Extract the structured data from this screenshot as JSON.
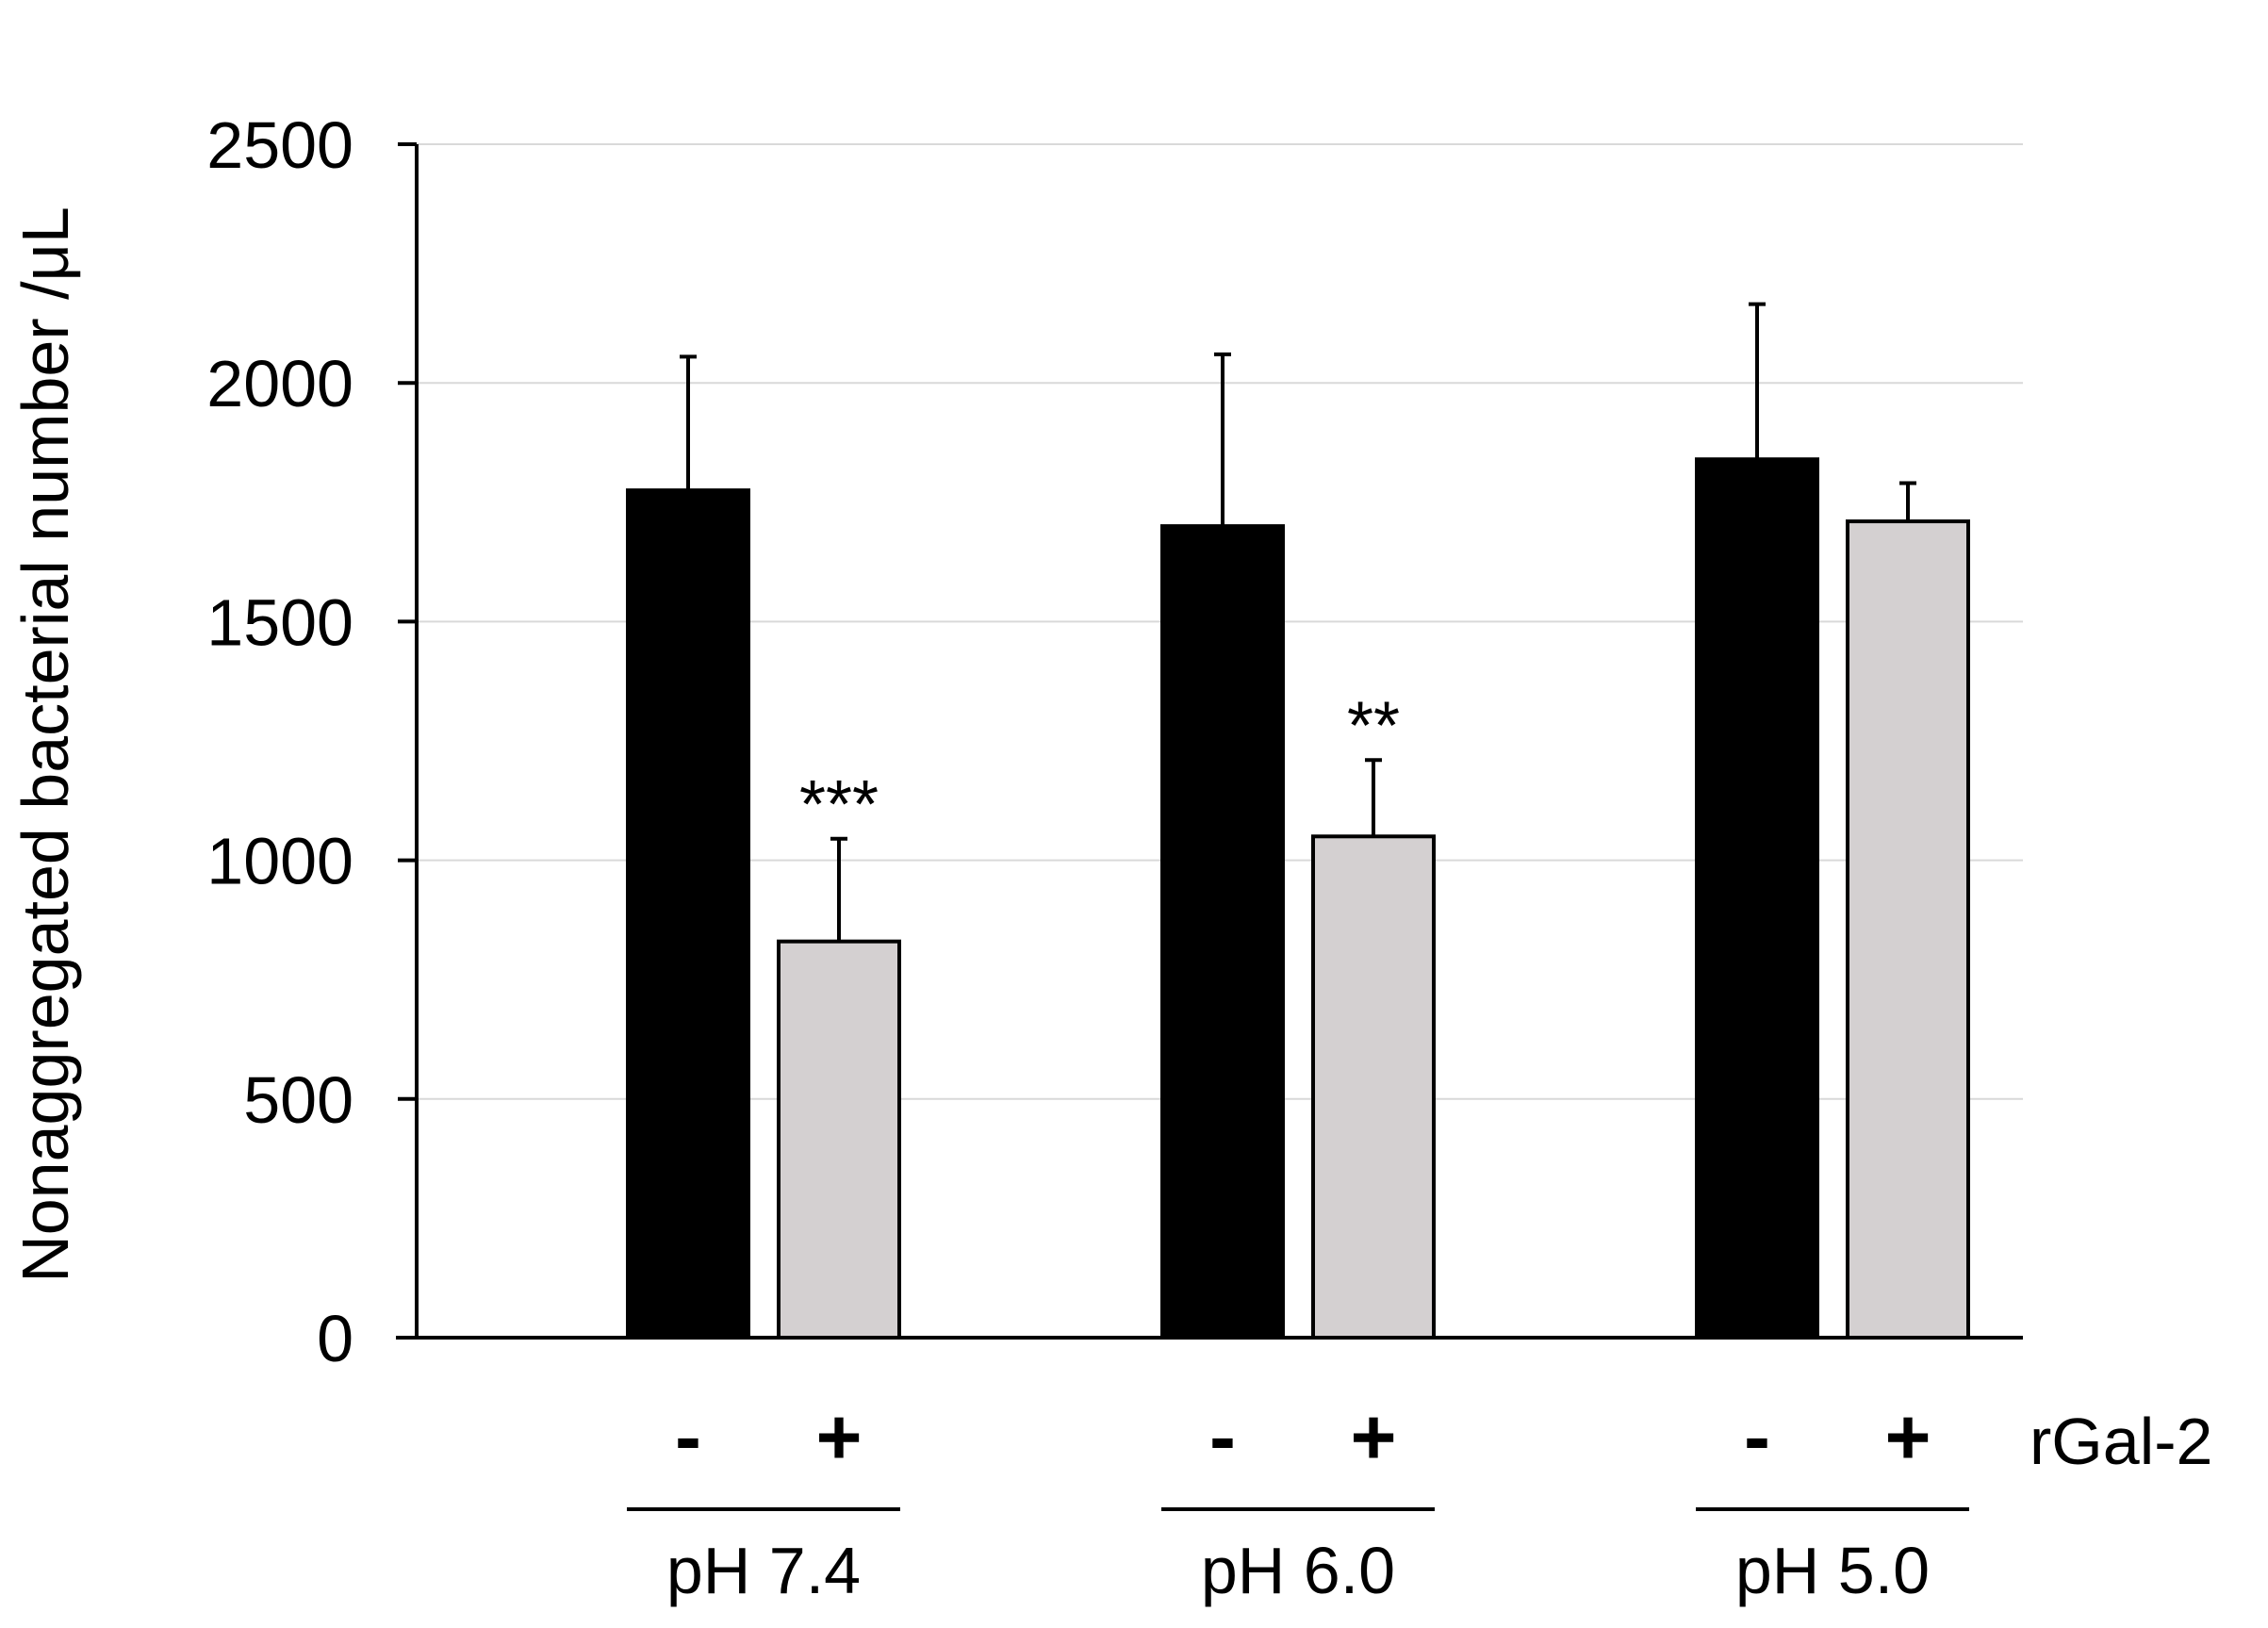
{
  "chart_data": {
    "type": "bar",
    "title": "",
    "ylabel": "Nonaggregated bacterial number /μL",
    "ylim": [
      0,
      2500
    ],
    "yticks": [
      0,
      500,
      1000,
      1500,
      2000,
      2500
    ],
    "grid": true,
    "treatment_label": "rGal-2",
    "groups": [
      {
        "label": "pH 7.4",
        "bars": [
          {
            "sign": "-",
            "value": 1775,
            "error": 280,
            "color": "#000000",
            "significance": ""
          },
          {
            "sign": "+",
            "value": 830,
            "error": 215,
            "color": "#d4d0d1",
            "significance": "***"
          }
        ]
      },
      {
        "label": "pH 6.0",
        "bars": [
          {
            "sign": "-",
            "value": 1700,
            "error": 360,
            "color": "#000000",
            "significance": ""
          },
          {
            "sign": "+",
            "value": 1050,
            "error": 160,
            "color": "#d4d0d1",
            "significance": "**"
          }
        ]
      },
      {
        "label": "pH 5.0",
        "bars": [
          {
            "sign": "-",
            "value": 1840,
            "error": 325,
            "color": "#000000",
            "significance": ""
          },
          {
            "sign": "+",
            "value": 1710,
            "error": 80,
            "color": "#d4d0d1",
            "significance": ""
          }
        ]
      }
    ]
  }
}
